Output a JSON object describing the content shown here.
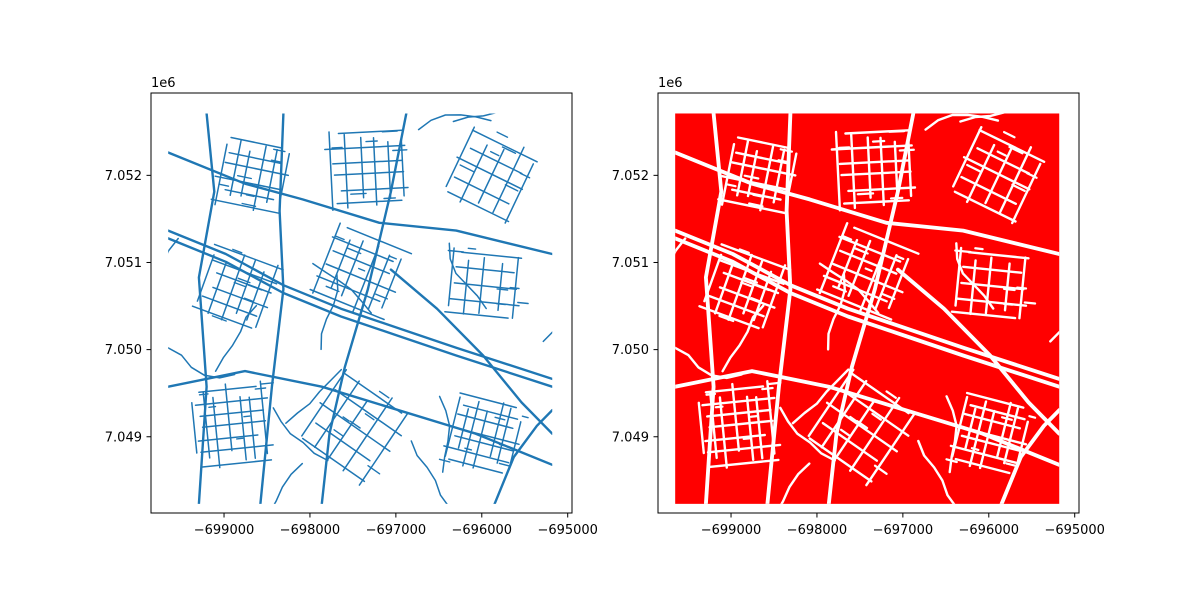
{
  "chart_data": [
    {
      "type": "map",
      "subplot": "left",
      "layer": "street network (lines)",
      "line_color": "#1f77b4",
      "background_color": "#ffffff",
      "xlim": [
        -699850,
        -694950
      ],
      "ylim": [
        7048125,
        7052945
      ],
      "extent_x": [
        -699650,
        -695180
      ],
      "extent_y": [
        7048230,
        7052710
      ],
      "x_ticks": [
        -699000,
        -698000,
        -697000,
        -696000,
        -695000
      ],
      "x_tick_labels": [
        "−699000",
        "−698000",
        "−697000",
        "−696000",
        "−695000"
      ],
      "y_ticks": [
        7049000,
        7050000,
        7051000,
        7052000
      ],
      "y_tick_labels": [
        "7.049",
        "7.050",
        "7.051",
        "7.052"
      ],
      "y_offset_label": "1e6"
    },
    {
      "type": "map",
      "subplot": "right",
      "layer": "city blocks (polygons between streets)",
      "fill_color": "#ff0000",
      "gap_color": "#ffffff",
      "xlim": [
        -699850,
        -694950
      ],
      "ylim": [
        7048125,
        7052945
      ],
      "extent_x": [
        -699650,
        -695180
      ],
      "extent_y": [
        7048230,
        7052710
      ],
      "x_ticks": [
        -699000,
        -698000,
        -697000,
        -696000,
        -695000
      ],
      "x_tick_labels": [
        "−699000",
        "−698000",
        "−697000",
        "−696000",
        "−695000"
      ],
      "y_ticks": [
        7049000,
        7050000,
        7051000,
        7052000
      ],
      "y_tick_labels": [
        "7.049",
        "7.050",
        "7.051",
        "7.052"
      ],
      "y_offset_label": "1e6"
    }
  ]
}
